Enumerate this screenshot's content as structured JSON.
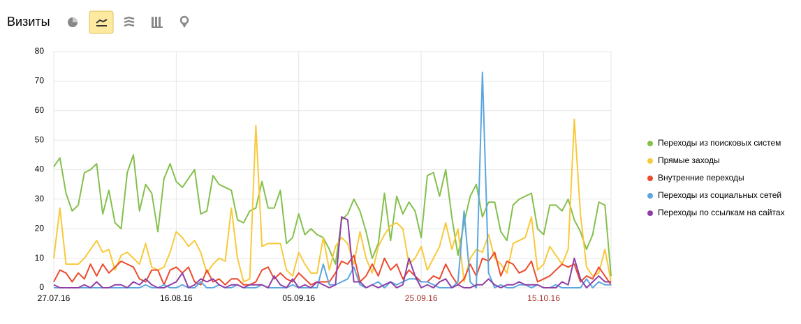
{
  "header": {
    "title": "Визиты"
  },
  "chart_data": {
    "type": "line",
    "categories": [
      "27.07.16",
      null,
      null,
      null,
      null,
      null,
      null,
      null,
      null,
      null,
      null,
      null,
      null,
      null,
      null,
      null,
      null,
      null,
      null,
      null,
      "16.08.16",
      null,
      null,
      null,
      null,
      null,
      null,
      null,
      null,
      null,
      null,
      null,
      null,
      null,
      null,
      null,
      null,
      null,
      null,
      null,
      "05.09.16",
      null,
      null,
      null,
      null,
      null,
      null,
      null,
      null,
      null,
      null,
      null,
      null,
      null,
      null,
      null,
      null,
      null,
      null,
      null,
      "25.09.16",
      null,
      null,
      null,
      null,
      null,
      null,
      null,
      null,
      null,
      null,
      null,
      null,
      null,
      null,
      null,
      null,
      null,
      null,
      null,
      "15.10.16",
      null,
      null,
      null,
      null,
      null,
      null,
      null,
      null,
      null,
      null,
      null
    ],
    "series": [
      {
        "name": "Переходы из поисковых систем",
        "color": "#84c04c",
        "values": [
          41,
          44,
          32,
          26,
          28,
          39,
          40,
          42,
          25,
          33,
          22,
          20,
          39,
          45,
          26,
          35,
          32,
          19,
          37,
          42,
          36,
          34,
          37,
          40,
          25,
          26,
          38,
          35,
          34,
          33,
          23,
          22,
          26,
          27,
          36,
          27,
          27,
          33,
          15,
          17,
          25,
          18,
          20,
          18,
          17,
          13,
          8,
          23,
          25,
          30,
          26,
          19,
          10,
          15,
          32,
          16,
          31,
          25,
          29,
          26,
          17,
          38,
          39,
          31,
          40,
          24,
          11,
          22,
          31,
          35,
          24,
          29,
          29,
          19,
          16,
          28,
          30,
          31,
          32,
          20,
          18,
          28,
          28,
          26,
          30,
          23,
          19,
          13,
          18,
          29,
          28,
          4
        ]
      },
      {
        "name": "Прямые заходы",
        "color": "#f8c93a",
        "values": [
          10,
          27,
          8,
          8,
          8,
          10,
          13,
          16,
          12,
          13,
          6,
          11,
          12,
          10,
          8,
          15,
          7,
          6,
          7,
          12,
          19,
          17,
          14,
          16,
          12,
          5,
          8,
          10,
          9,
          27,
          10,
          2,
          3,
          55,
          14,
          15,
          15,
          15,
          6,
          4,
          12,
          8,
          5,
          5,
          17,
          6,
          14,
          17,
          15,
          8,
          19,
          10,
          5,
          14,
          18,
          21,
          22,
          20,
          8,
          10,
          14,
          6,
          10,
          14,
          22,
          13,
          20,
          2,
          10,
          13,
          12,
          18,
          10,
          8,
          5,
          15,
          16,
          17,
          24,
          6,
          8,
          14,
          11,
          8,
          13,
          57,
          25,
          7,
          4,
          5,
          13,
          2
        ]
      },
      {
        "name": "Внутренние переходы",
        "color": "#ec4a2c",
        "values": [
          2,
          6,
          5,
          2,
          5,
          3,
          8,
          4,
          8,
          5,
          7,
          9,
          8,
          7,
          3,
          2,
          6,
          6,
          1,
          6,
          7,
          5,
          7,
          2,
          1,
          6,
          2,
          3,
          1,
          3,
          3,
          1,
          1,
          2,
          6,
          7,
          3,
          5,
          3,
          2,
          5,
          3,
          1,
          2,
          2,
          2,
          5,
          9,
          8,
          11,
          2,
          4,
          8,
          4,
          10,
          6,
          8,
          3,
          6,
          4,
          2,
          2,
          4,
          3,
          8,
          4,
          1,
          3,
          8,
          4,
          10,
          9,
          12,
          4,
          9,
          8,
          5,
          6,
          9,
          2,
          3,
          4,
          6,
          8,
          7,
          8,
          2,
          4,
          3,
          7,
          4,
          1
        ]
      },
      {
        "name": "Переходы из социальных сетей",
        "color": "#5aa6e0",
        "values": [
          0,
          0,
          0,
          0,
          0,
          0,
          0,
          0,
          0,
          0,
          0,
          0,
          0,
          0,
          0,
          1,
          0,
          0,
          1,
          0,
          0,
          1,
          0,
          0,
          2,
          0,
          0,
          1,
          0,
          0,
          1,
          0,
          0,
          0,
          1,
          0,
          0,
          0,
          0,
          1,
          0,
          0,
          0,
          0,
          8,
          1,
          1,
          2,
          3,
          7,
          1,
          0,
          1,
          2,
          0,
          2,
          1,
          2,
          3,
          3,
          2,
          2,
          1,
          0,
          0,
          0,
          2,
          26,
          2,
          0,
          73,
          5,
          0,
          1,
          0,
          0,
          1,
          1,
          0,
          1,
          0,
          0,
          1,
          0,
          0,
          0,
          0,
          3,
          0,
          2,
          1,
          1
        ]
      },
      {
        "name": "Переходы по ссылкам на сайтах",
        "color": "#8e3ea6",
        "values": [
          1,
          0,
          0,
          0,
          0,
          1,
          0,
          2,
          0,
          0,
          1,
          1,
          0,
          2,
          1,
          3,
          1,
          0,
          0,
          1,
          2,
          5,
          0,
          1,
          3,
          2,
          3,
          1,
          0,
          1,
          1,
          0,
          1,
          1,
          1,
          0,
          4,
          1,
          0,
          3,
          0,
          1,
          0,
          2,
          1,
          0,
          1,
          24,
          23,
          2,
          2,
          0,
          1,
          0,
          1,
          2,
          0,
          1,
          10,
          4,
          0,
          1,
          0,
          2,
          3,
          0,
          1,
          0,
          0,
          1,
          1,
          3,
          1,
          0,
          1,
          1,
          2,
          1,
          1,
          1,
          0,
          0,
          0,
          2,
          1,
          10,
          3,
          0,
          2,
          4,
          2,
          2
        ]
      }
    ],
    "ylim": [
      0,
      80
    ],
    "yticks": [
      0,
      10,
      20,
      30,
      40,
      50,
      60,
      70,
      80
    ],
    "grid": true,
    "legend": "right",
    "weekend_label_color": "#a3342c"
  }
}
